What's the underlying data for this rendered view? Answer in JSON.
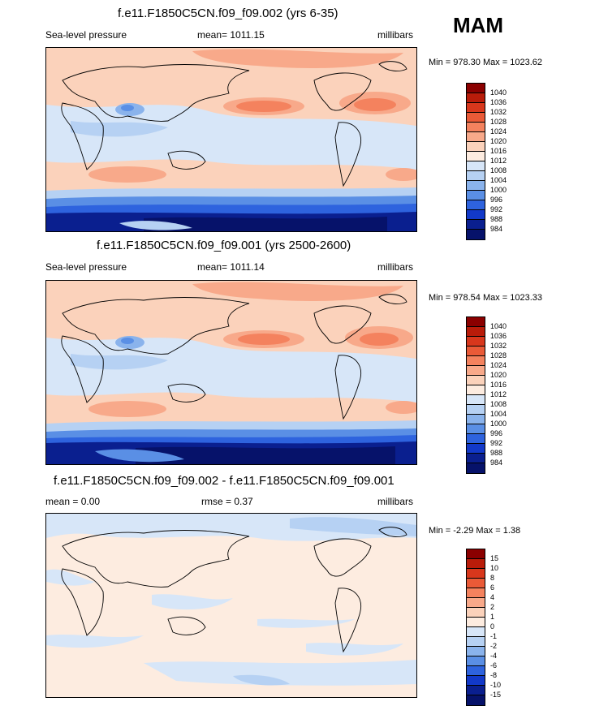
{
  "season": "MAM",
  "chart_data": [
    {
      "type": "heatmap",
      "title": "f.e11.F1850C5CN.f09_f09.002 (yrs 6-35)",
      "left_label": "Sea-level pressure",
      "center_label": "mean= 1011.15",
      "right_label": "millibars",
      "minmax": "Min = 978.30 Max = 1023.62",
      "levels": [
        "1040",
        "1036",
        "1032",
        "1028",
        "1024",
        "1020",
        "1016",
        "1012",
        "1008",
        "1004",
        "1000",
        "996",
        "992",
        "988",
        "984"
      ],
      "colors": [
        "#8b0000",
        "#b91c0a",
        "#d8371c",
        "#ea5a37",
        "#f4825e",
        "#f8a98a",
        "#fbd2bb",
        "#fdece0",
        "#d7e6f8",
        "#b6d1f3",
        "#8ab3ec",
        "#5a8fe5",
        "#2e63de",
        "#1239c9",
        "#0a1f8f",
        "#06126a"
      ]
    },
    {
      "type": "heatmap",
      "title": "f.e11.F1850C5CN.f09_f09.001 (yrs 2500-2600)",
      "left_label": "Sea-level pressure",
      "center_label": "mean= 1011.14",
      "right_label": "millibars",
      "minmax": "Min = 978.54 Max = 1023.33",
      "levels": [
        "1040",
        "1036",
        "1032",
        "1028",
        "1024",
        "1020",
        "1016",
        "1012",
        "1008",
        "1004",
        "1000",
        "996",
        "992",
        "988",
        "984"
      ],
      "colors": [
        "#8b0000",
        "#b91c0a",
        "#d8371c",
        "#ea5a37",
        "#f4825e",
        "#f8a98a",
        "#fbd2bb",
        "#fdece0",
        "#d7e6f8",
        "#b6d1f3",
        "#8ab3ec",
        "#5a8fe5",
        "#2e63de",
        "#1239c9",
        "#0a1f8f",
        "#06126a"
      ]
    },
    {
      "type": "heatmap",
      "title": "f.e11.F1850C5CN.f09_f09.002 - f.e11.F1850C5CN.f09_f09.001",
      "left_label": "mean =   0.00",
      "center_label": "rmse =   0.37",
      "right_label": "millibars",
      "minmax": "Min =  -2.29 Max =   1.38",
      "levels": [
        "15",
        "10",
        "8",
        "6",
        "4",
        "2",
        "1",
        "0",
        "-1",
        "-2",
        "-4",
        "-6",
        "-8",
        "-10",
        "-15"
      ],
      "colors": [
        "#8b0000",
        "#b91c0a",
        "#d8371c",
        "#ea5a37",
        "#f4825e",
        "#f8a98a",
        "#fbd2bb",
        "#fdece0",
        "#d7e6f8",
        "#b6d1f3",
        "#8ab3ec",
        "#5a8fe5",
        "#2e63de",
        "#1239c9",
        "#0a1f8f",
        "#06126a"
      ]
    }
  ]
}
